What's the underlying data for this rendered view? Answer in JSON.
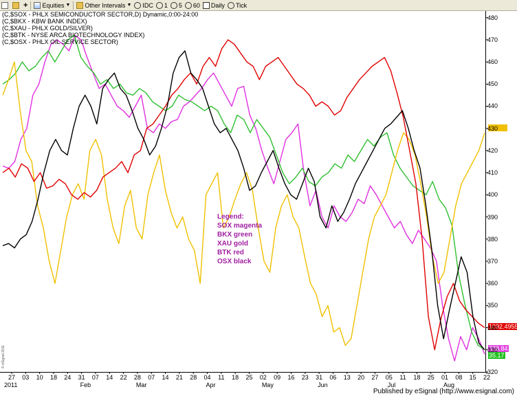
{
  "toolbar": {
    "items": [
      {
        "label": "Equities",
        "icon": "equities-icon"
      },
      {
        "label": "Other Intervals",
        "icon": "intervals-icon"
      },
      {
        "label": "IDC"
      },
      {
        "label": "1"
      },
      {
        "label": "5"
      },
      {
        "label": "60"
      },
      {
        "label": "Daily"
      },
      {
        "label": "Tick"
      }
    ]
  },
  "titles": [
    "(C,$SOX - PHLX SEMICONDUCTOR SECTOR,D) Dynamic,0:00-24:00",
    "(C,$BKX - KBW BANK INDEX)",
    "(C,$XAU - PHLX GOLD/SILVER)",
    "(C,$BTK - NYSE ARCA BIOTECHNOLOGY INDEX)",
    "(C,$OSX - PHLX OIL SERVICE SECTOR)"
  ],
  "legend": {
    "heading": "Legend:",
    "lines": [
      "SOX magenta",
      "BKX green",
      "XAU gold",
      "BTK red",
      "OSX black"
    ]
  },
  "price_tags": [
    {
      "label": "",
      "color": "#f0c000"
    },
    {
      "label": "1092.4955",
      "color": "#e00000"
    },
    {
      "label": "328.84",
      "color": "#e040e0"
    },
    {
      "label": "35.17",
      "color": "#20c020"
    }
  ],
  "status": {
    "publisher": "Published by eSignal (http://www.esignal.com)",
    "copyright": "© eSignal 2011"
  },
  "chart_data": {
    "type": "line",
    "y_ticks": [
      480,
      470,
      460,
      450,
      440,
      430,
      420,
      410,
      400,
      390,
      380,
      370,
      360,
      350,
      340,
      330,
      320
    ],
    "x_ticks": [
      "27",
      "03",
      "10",
      "18",
      "24",
      "31",
      "07",
      "14",
      "22",
      "28",
      "07",
      "14",
      "21",
      "28",
      "04",
      "11",
      "18",
      "25",
      "02",
      "09",
      "16",
      "23",
      "31",
      "06",
      "13",
      "20",
      "27",
      "05",
      "11",
      "18",
      "25",
      "01",
      "08",
      "15",
      "22"
    ],
    "months": [
      "2011",
      "Feb",
      "Mar",
      "Apr",
      "May",
      "Jun",
      "Jul",
      "Aug"
    ],
    "ylim": [
      320,
      483
    ],
    "series": [
      {
        "name": "SOX",
        "color": "#e030e0",
        "values": [
          413,
          412,
          415,
          425,
          430,
          445,
          450,
          460,
          468,
          470,
          468,
          465,
          472,
          470,
          462,
          455,
          448,
          450,
          445,
          440,
          438,
          435,
          440,
          445,
          430,
          428,
          432,
          430,
          433,
          434,
          440,
          442,
          445,
          448,
          452,
          455,
          450,
          445,
          440,
          448,
          449,
          436,
          430,
          420,
          412,
          405,
          415,
          425,
          428,
          432,
          410,
          395,
          402,
          390,
          385,
          395,
          390,
          388,
          392,
          398,
          396,
          404,
          400,
          395,
          390,
          385,
          388,
          382,
          378,
          384,
          380,
          376,
          370,
          350,
          335,
          325,
          336,
          330,
          340,
          335,
          328
        ]
      },
      {
        "name": "BKX",
        "color": "#30c030",
        "values": [
          450,
          452,
          455,
          460,
          456,
          458,
          462,
          465,
          460,
          465,
          470,
          472,
          462,
          458,
          455,
          450,
          452,
          448,
          450,
          446,
          445,
          448,
          446,
          442,
          440,
          438,
          440,
          445,
          443,
          442,
          440,
          438,
          440,
          438,
          432,
          428,
          436,
          434,
          428,
          434,
          430,
          426,
          418,
          410,
          405,
          408,
          412,
          406,
          404,
          408,
          410,
          414,
          412,
          418,
          415,
          420,
          425,
          422,
          426,
          428,
          418,
          412,
          408,
          404,
          402,
          400,
          406,
          398,
          394,
          386,
          364,
          350,
          338,
          332,
          330
        ]
      },
      {
        "name": "XAU",
        "color": "#f0c000",
        "values": [
          445,
          452,
          460,
          438,
          420,
          415,
          395,
          385,
          370,
          360,
          375,
          390,
          400,
          405,
          398,
          420,
          425,
          418,
          398,
          385,
          378,
          395,
          402,
          385,
          380,
          400,
          410,
          418,
          402,
          392,
          385,
          390,
          380,
          375,
          360,
          400,
          405,
          410,
          385,
          390,
          398,
          405,
          410,
          402,
          385,
          370,
          365,
          385,
          395,
          400,
          390,
          385,
          372,
          360,
          355,
          345,
          350,
          338,
          340,
          332,
          335,
          350,
          365,
          380,
          390,
          395,
          400,
          410,
          420,
          428,
          425,
          418,
          405,
          390,
          372,
          360,
          365,
          380,
          395,
          405,
          410,
          415,
          420,
          428
        ]
      },
      {
        "name": "BTK",
        "color": "#e00000",
        "values": [
          410,
          412,
          408,
          414,
          412,
          406,
          410,
          403,
          404,
          407,
          405,
          400,
          398,
          401,
          399,
          402,
          408,
          410,
          412,
          415,
          410,
          418,
          420,
          430,
          432,
          436,
          440,
          445,
          448,
          452,
          455,
          450,
          458,
          462,
          458,
          466,
          470,
          468,
          464,
          460,
          458,
          452,
          458,
          460,
          462,
          458,
          454,
          450,
          448,
          445,
          440,
          442,
          440,
          436,
          438,
          444,
          448,
          452,
          455,
          458,
          460,
          462,
          456,
          446,
          435,
          420,
          405,
          380,
          345,
          330,
          344,
          354,
          360,
          352,
          348,
          345,
          342,
          340
        ]
      },
      {
        "name": "OSX",
        "color": "#000000",
        "values": [
          377,
          378,
          376,
          380,
          382,
          388,
          398,
          410,
          420,
          425,
          420,
          418,
          430,
          440,
          445,
          440,
          432,
          448,
          452,
          455,
          448,
          445,
          438,
          430,
          425,
          418,
          422,
          430,
          440,
          455,
          462,
          465,
          455,
          452,
          448,
          440,
          432,
          428,
          430,
          425,
          420,
          412,
          402,
          404,
          410,
          415,
          420,
          412,
          405,
          400,
          398,
          405,
          412,
          406,
          390,
          385,
          395,
          388,
          392,
          398,
          405,
          410,
          415,
          420,
          425,
          430,
          432,
          435,
          438,
          430,
          420,
          412,
          395,
          375,
          350,
          335,
          348,
          360,
          372,
          365,
          345,
          333,
          330
        ]
      }
    ]
  }
}
